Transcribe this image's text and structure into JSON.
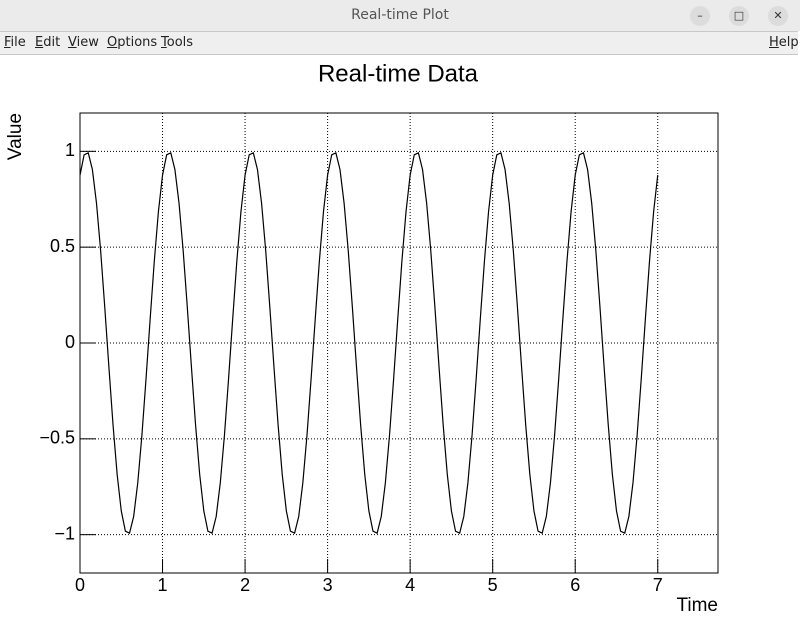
{
  "window": {
    "title": "Real-time Plot",
    "menu": [
      "File",
      "Edit",
      "View",
      "Options",
      "Tools"
    ],
    "help": "Help"
  },
  "chart_data": {
    "type": "line",
    "title": "Real-time Data",
    "x_label": "Time",
    "y_label": "Value",
    "color": "#000000",
    "grid": true,
    "xlim": [
      0,
      7.73
    ],
    "ylim": [
      -1.2,
      1.2
    ],
    "xticks": [
      0,
      1,
      2,
      3,
      4,
      5,
      6,
      7
    ],
    "yticks": [
      {
        "value": -1,
        "label": "−1"
      },
      {
        "value": -0.5,
        "label": "−0.5"
      },
      0,
      0.5,
      1
    ],
    "x": [
      0,
      0.05,
      0.1,
      0.15,
      0.2,
      0.25,
      0.3,
      0.35,
      0.4,
      0.45,
      0.5,
      0.55,
      0.6,
      0.65,
      0.7,
      0.75,
      0.8,
      0.85,
      0.9,
      0.95,
      1,
      1.05,
      1.1,
      1.15,
      1.2,
      1.25,
      1.3,
      1.35,
      1.4,
      1.45,
      1.5,
      1.55,
      1.6,
      1.65,
      1.7,
      1.75,
      1.8,
      1.85,
      1.9,
      1.95,
      2,
      2.05,
      2.1,
      2.15,
      2.2,
      2.25,
      2.3,
      2.35,
      2.4,
      2.45,
      2.5,
      2.55,
      2.6,
      2.65,
      2.7,
      2.75,
      2.8,
      2.85,
      2.9,
      2.95,
      3,
      3.05,
      3.1,
      3.15,
      3.2,
      3.25,
      3.3,
      3.35,
      3.4,
      3.45,
      3.5,
      3.55,
      3.6,
      3.65,
      3.7,
      3.75,
      3.8,
      3.85,
      3.9,
      3.95,
      4,
      4.05,
      4.1,
      4.15,
      4.2,
      4.25,
      4.3,
      4.35,
      4.4,
      4.45,
      4.5,
      4.55,
      4.6,
      4.65,
      4.7,
      4.75,
      4.8,
      4.85,
      4.9,
      4.95,
      5,
      5.05,
      5.1,
      5.15,
      5.2,
      5.25,
      5.3,
      5.35,
      5.4,
      5.45,
      5.5,
      5.55,
      5.6,
      5.65,
      5.7,
      5.75,
      5.8,
      5.85,
      5.9,
      5.95,
      6,
      6.05,
      6.1,
      6.15,
      6.2,
      6.25,
      6.3,
      6.35,
      6.4,
      6.45,
      6.5,
      6.55,
      6.6,
      6.65,
      6.7,
      6.75,
      6.8,
      6.85,
      6.9,
      6.95,
      7
    ],
    "values": [
      0.876,
      0.982,
      0.992,
      0.905,
      0.729,
      0.482,
      0.187,
      -0.125,
      -0.426,
      -0.685,
      -0.876,
      -0.982,
      -0.992,
      -0.905,
      -0.729,
      -0.482,
      -0.187,
      0.125,
      0.426,
      0.685,
      0.876,
      0.982,
      0.992,
      0.905,
      0.729,
      0.482,
      0.187,
      -0.125,
      -0.426,
      -0.685,
      -0.876,
      -0.982,
      -0.992,
      -0.905,
      -0.729,
      -0.482,
      -0.187,
      0.125,
      0.426,
      0.685,
      0.876,
      0.982,
      0.992,
      0.905,
      0.729,
      0.482,
      0.187,
      -0.125,
      -0.426,
      -0.685,
      -0.876,
      -0.982,
      -0.992,
      -0.905,
      -0.729,
      -0.482,
      -0.187,
      0.125,
      0.426,
      0.685,
      0.876,
      0.982,
      0.992,
      0.905,
      0.729,
      0.482,
      0.187,
      -0.125,
      -0.426,
      -0.685,
      -0.876,
      -0.982,
      -0.992,
      -0.905,
      -0.729,
      -0.482,
      -0.187,
      0.125,
      0.426,
      0.685,
      0.876,
      0.982,
      0.992,
      0.905,
      0.729,
      0.482,
      0.187,
      -0.125,
      -0.426,
      -0.685,
      -0.876,
      -0.982,
      -0.992,
      -0.905,
      -0.729,
      -0.482,
      -0.187,
      0.125,
      0.426,
      0.685,
      0.876,
      0.982,
      0.992,
      0.905,
      0.729,
      0.482,
      0.187,
      -0.125,
      -0.426,
      -0.685,
      -0.876,
      -0.982,
      -0.992,
      -0.905,
      -0.729,
      -0.482,
      -0.187,
      0.125,
      0.426,
      0.685,
      0.876,
      0.982,
      0.992,
      0.905,
      0.729,
      0.482,
      0.187,
      -0.125,
      -0.426,
      -0.685,
      -0.876,
      -0.982,
      -0.992,
      -0.905,
      -0.729,
      -0.482,
      -0.187,
      0.125,
      0.426,
      0.685,
      0.876
    ]
  }
}
